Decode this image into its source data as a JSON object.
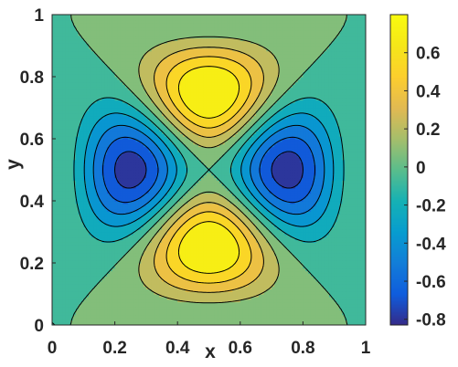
{
  "chart_data": {
    "type": "heatmap",
    "subtype": "filled-contour",
    "title": "",
    "xlabel": "x",
    "ylabel": "y",
    "xlim": [
      0,
      1
    ],
    "ylim": [
      0,
      1
    ],
    "x_ticks": [
      "0",
      "0.2",
      "0.4",
      "0.6",
      "0.8",
      "1"
    ],
    "y_ticks": [
      "0",
      "0.2",
      "0.4",
      "0.6",
      "0.8",
      "1"
    ],
    "colorbar": {
      "colormap": "parula",
      "limits": [
        -0.83,
        0.8
      ],
      "ticks": [
        "-0.8",
        "-0.6",
        "-0.4",
        "-0.2",
        "0",
        "0.2",
        "0.4",
        "0.6"
      ],
      "tick_values": [
        -0.8,
        -0.6,
        -0.4,
        -0.2,
        0,
        0.2,
        0.4,
        0.6
      ]
    },
    "contour_levels": [
      -0.75,
      -0.6,
      -0.45,
      -0.3,
      -0.15,
      0,
      0.15,
      0.3,
      0.45,
      0.6
    ],
    "field": {
      "grid_size": 61,
      "description_of_shape": "positive lobes near (0.5,0.8) and (0.5,0.2), negative lobes near (0.2,0.5) and (0.8,0.5); saddle at (0.5,0.5)",
      "maxima": [
        {
          "x": 0.5,
          "y": 0.8,
          "value": 0.8
        },
        {
          "x": 0.5,
          "y": 0.2,
          "value": 0.8
        }
      ],
      "minima": [
        {
          "x": 0.2,
          "y": 0.5,
          "value": -0.83
        },
        {
          "x": 0.8,
          "y": 0.5,
          "value": -0.83
        }
      ]
    }
  }
}
